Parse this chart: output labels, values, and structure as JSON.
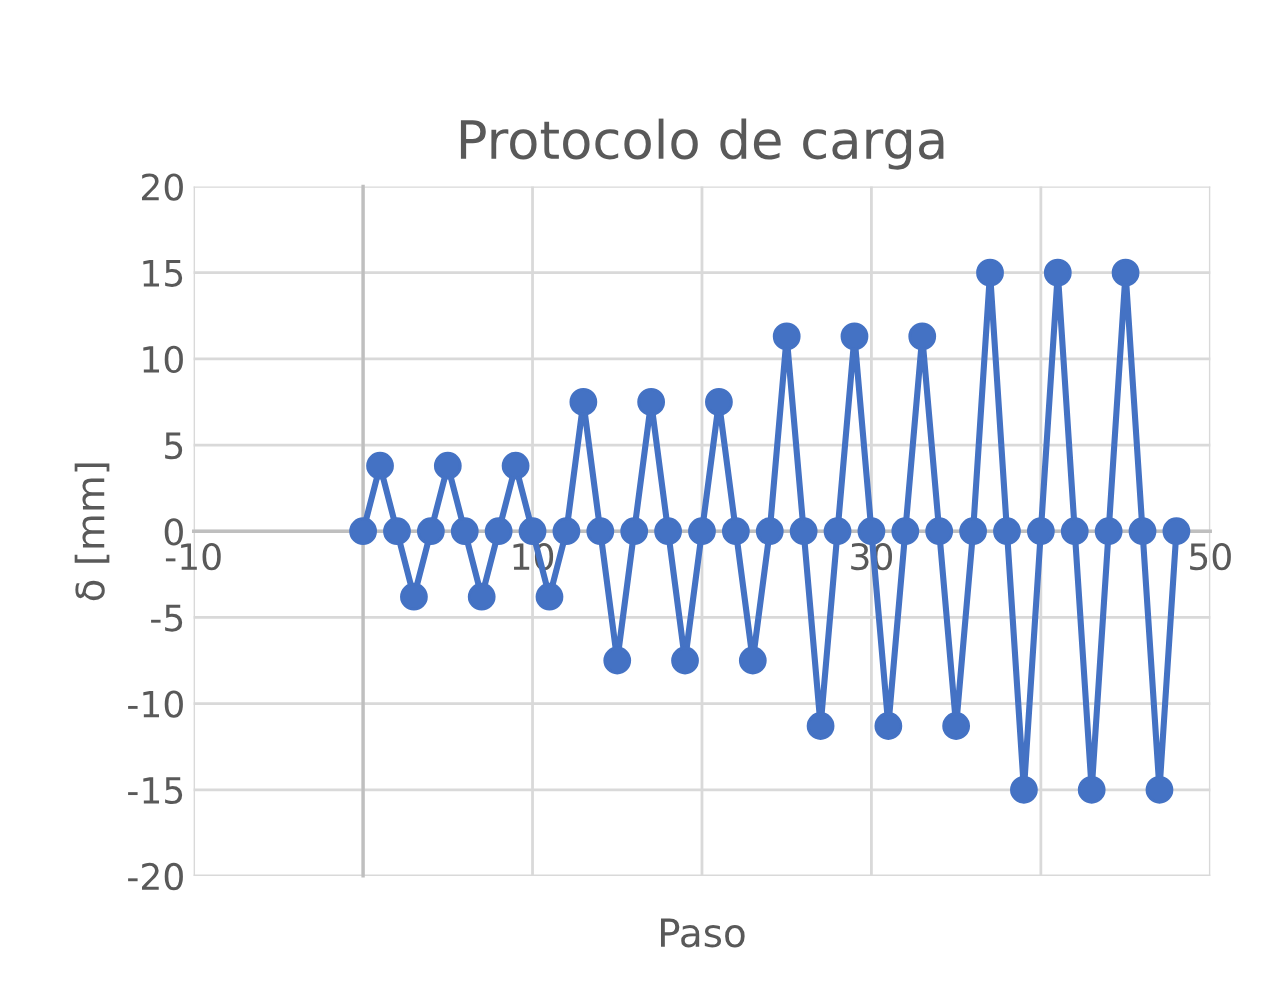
{
  "chart_data": {
    "type": "line",
    "title": "Protocolo de carga",
    "xlabel": "Paso",
    "ylabel": "δ [mm]",
    "x": [
      0,
      1,
      2,
      3,
      4,
      5,
      6,
      7,
      8,
      9,
      10,
      11,
      12,
      13,
      14,
      15,
      16,
      17,
      18,
      19,
      20,
      21,
      22,
      23,
      24,
      25,
      26,
      27,
      28,
      29,
      30,
      31,
      32,
      33,
      34,
      35,
      36,
      37,
      38,
      39,
      40,
      41,
      42,
      43,
      44,
      45,
      46,
      47,
      48
    ],
    "series": [
      {
        "color": "#4472c4",
        "values": [
          0,
          3.8,
          0,
          -3.8,
          0,
          3.8,
          0,
          -3.8,
          0,
          3.8,
          0,
          -3.8,
          0,
          7.5,
          0,
          -7.5,
          0,
          7.5,
          0,
          -7.5,
          0,
          7.5,
          0,
          -7.5,
          0,
          11.3,
          0,
          -11.3,
          0,
          11.3,
          0,
          -11.3,
          0,
          11.3,
          0,
          -11.3,
          0,
          15,
          0,
          -15,
          0,
          15,
          0,
          -15,
          0,
          15,
          0,
          -15,
          0
        ]
      }
    ],
    "xlim": [
      -10,
      50
    ],
    "xticks": [
      -10,
      {
        "value": 0,
        "label": null
      },
      10,
      {
        "value": 20,
        "label": null
      },
      30,
      {
        "value": 40,
        "label": null
      },
      50
    ],
    "ylim": [
      -20,
      20
    ],
    "yticks": [
      -20,
      -15,
      -10,
      -5,
      0,
      5,
      10,
      15,
      20
    ],
    "grid": true,
    "marker": "circle",
    "line_style": "solid",
    "legend": false
  }
}
